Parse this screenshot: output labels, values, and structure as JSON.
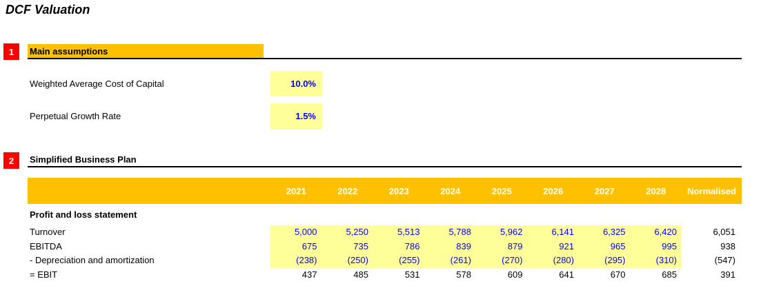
{
  "title": "DCF Valuation",
  "sections": [
    {
      "number": "1",
      "title": "Main assumptions"
    },
    {
      "number": "2",
      "title": "Simplified Business Plan"
    }
  ],
  "assumptions": [
    {
      "label": "Weighted Average Cost of Capital",
      "value": "10.0%"
    },
    {
      "label": "Perpetual Growth Rate",
      "value": "1.5%"
    }
  ],
  "business_plan_table": {
    "columns": [
      "2021",
      "2022",
      "2023",
      "2024",
      "2025",
      "2026",
      "2027",
      "2028",
      "Normalised"
    ],
    "group_header": "Profit and loss statement",
    "rows": [
      {
        "label": "Turnover",
        "values": [
          "5,000",
          "5,250",
          "5,513",
          "5,788",
          "5,962",
          "6,141",
          "6,325",
          "6,420"
        ],
        "normalised": "6,051",
        "highlighted": true
      },
      {
        "label": "EBITDA",
        "values": [
          "675",
          "735",
          "786",
          "839",
          "879",
          "921",
          "965",
          "995"
        ],
        "normalised": "938",
        "highlighted": true
      },
      {
        "label": "- Depreciation and amortization",
        "values": [
          "(238)",
          "(250)",
          "(255)",
          "(261)",
          "(270)",
          "(280)",
          "(295)",
          "(310)"
        ],
        "normalised": "(547)",
        "highlighted": true
      },
      {
        "label": "= EBIT",
        "values": [
          "437",
          "485",
          "531",
          "578",
          "609",
          "641",
          "670",
          "685"
        ],
        "normalised": "391",
        "highlighted": false
      }
    ]
  },
  "colors": {
    "section_bar": "#FFC000",
    "badge": "#FF0000",
    "input_cell": "#FFFF99",
    "input_text": "#0000FF",
    "header_text": "#FFFFFF"
  }
}
